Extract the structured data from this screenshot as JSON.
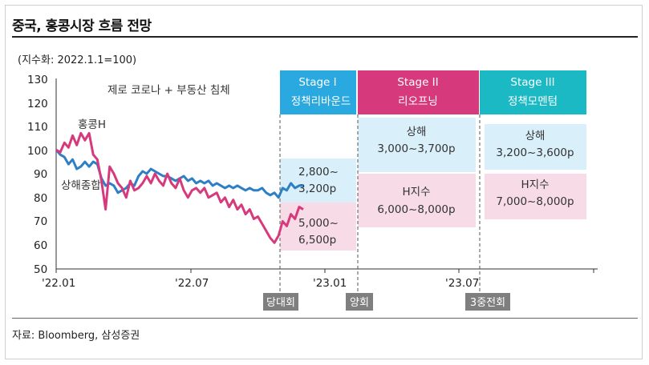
{
  "header": {
    "title": "중국, 홍콩시장 흐름 전망"
  },
  "footer": {
    "source": "자료: Bloomberg, 삼성증권"
  },
  "chart_data": {
    "type": "line",
    "unit_label": "(지수화: 2022.1.1=100)",
    "ylim": [
      50,
      130
    ],
    "y_ticks": [
      130,
      120,
      110,
      100,
      90,
      80,
      70,
      60,
      50
    ],
    "x_tick_labels": [
      "'22.01",
      "'22.07",
      "'23.01",
      "'23.07"
    ],
    "annotation": "제로 코로나 + 부동산 침체",
    "series": [
      {
        "name": "홍콩H",
        "color": "#d63a7d",
        "x": [
          0,
          1,
          2,
          3,
          4,
          5,
          6,
          7,
          8,
          9,
          10,
          11,
          12,
          13,
          14,
          15,
          16,
          17,
          18,
          19,
          20,
          21,
          22,
          23,
          24,
          25,
          26,
          27,
          28,
          29,
          30,
          31,
          32,
          33,
          34,
          35,
          36,
          37,
          38,
          39,
          40,
          41,
          42,
          43,
          44,
          45,
          46,
          47,
          48,
          49,
          50,
          51,
          52,
          53,
          54,
          55,
          56,
          57,
          58,
          59,
          60
        ],
        "values": [
          100,
          99,
          103,
          101,
          106,
          102,
          107,
          104,
          107,
          98,
          96,
          87,
          75,
          93,
          90,
          86,
          84,
          80,
          87,
          83,
          84,
          86,
          89,
          86,
          90,
          87,
          85,
          90,
          86,
          84,
          88,
          83,
          80,
          83,
          84,
          82,
          84,
          80,
          81,
          82,
          78,
          80,
          76,
          79,
          75,
          77,
          73,
          75,
          71,
          72,
          69,
          66,
          63,
          61,
          64,
          70,
          68,
          73,
          71,
          76,
          75
        ]
      },
      {
        "name": "상해종합",
        "color": "#2f7fc4",
        "x": [
          0,
          1,
          2,
          3,
          4,
          5,
          6,
          7,
          8,
          9,
          10,
          11,
          12,
          13,
          14,
          15,
          16,
          17,
          18,
          19,
          20,
          21,
          22,
          23,
          24,
          25,
          26,
          27,
          28,
          29,
          30,
          31,
          32,
          33,
          34,
          35,
          36,
          37,
          38,
          39,
          40,
          41,
          42,
          43,
          44,
          45,
          46,
          47,
          48,
          49,
          50,
          51,
          52,
          53,
          54,
          55,
          56,
          57,
          58,
          59,
          60
        ],
        "values": [
          100,
          98,
          97,
          94,
          96,
          92,
          93,
          95,
          93,
          95,
          94,
          88,
          85,
          86,
          85,
          82,
          83,
          84,
          86,
          85,
          89,
          91,
          90,
          92,
          91,
          90,
          89,
          89,
          88,
          87,
          88,
          89,
          87,
          88,
          86,
          87,
          86,
          87,
          85,
          86,
          85,
          84,
          85,
          84,
          85,
          84,
          83,
          84,
          83,
          83,
          84,
          82,
          81,
          82,
          80,
          84,
          83,
          86,
          84,
          85,
          85
        ]
      }
    ],
    "stages": [
      {
        "label": "Stage I",
        "sub": "정책리바운드",
        "color": "#29a9e0"
      },
      {
        "label": "Stage II",
        "sub": "리오프닝",
        "color": "#d63a7d"
      },
      {
        "label": "Stage III",
        "sub": "정책모멘텀",
        "color": "#1ab9c4"
      }
    ],
    "stage1_boxes": {
      "sh": [
        "2,800~",
        "3,200p"
      ],
      "hk": [
        "5,000~",
        "6,500p"
      ]
    },
    "stage2_boxes": {
      "sh": [
        "상해",
        "3,000~3,700p"
      ],
      "hk": [
        "H지수",
        "6,000~8,000p"
      ]
    },
    "stage3_boxes": {
      "sh": [
        "상해",
        "3,200~3,600p"
      ],
      "hk": [
        "H지수",
        "7,000~8,000p"
      ]
    },
    "events": [
      "당대회",
      "양회",
      "3중전회"
    ]
  }
}
